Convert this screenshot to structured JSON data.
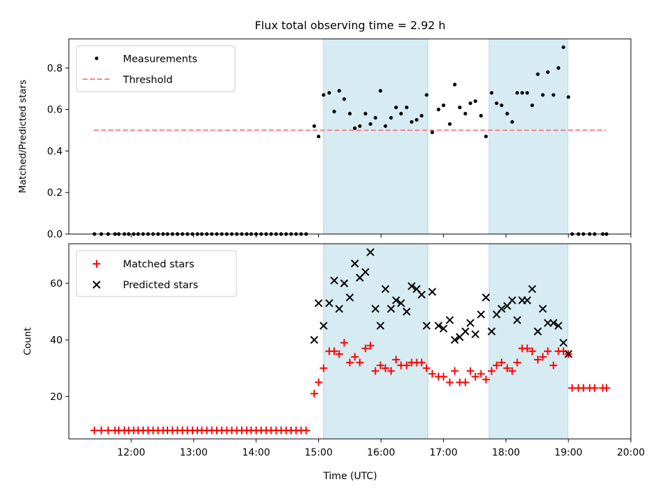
{
  "chart_data": {
    "type": "scatter",
    "title": "Flux total observing time = 2.92 h",
    "xlabel": "Time (UTC)",
    "x_unit": "hours UTC",
    "xlim": [
      11.0,
      20.0
    ],
    "x_ticks": [
      {
        "value": 12,
        "label": "12:00"
      },
      {
        "value": 13,
        "label": "13:00"
      },
      {
        "value": 14,
        "label": "14:00"
      },
      {
        "value": 15,
        "label": "15:00"
      },
      {
        "value": 16,
        "label": "16:00"
      },
      {
        "value": 17,
        "label": "17:00"
      },
      {
        "value": 18,
        "label": "18:00"
      },
      {
        "value": 19,
        "label": "19:00"
      },
      {
        "value": 20,
        "label": "20:00"
      }
    ],
    "shaded_intervals": [
      [
        15.08,
        16.75
      ],
      [
        17.73,
        18.99
      ]
    ],
    "top_panel": {
      "ylabel": "Matched/Predicted stars",
      "ylim": [
        0.0,
        0.94
      ],
      "y_ticks": [
        {
          "value": 0.0,
          "label": "0.0"
        },
        {
          "value": 0.2,
          "label": "0.2"
        },
        {
          "value": 0.4,
          "label": "0.4"
        },
        {
          "value": 0.6,
          "label": "0.6"
        },
        {
          "value": 0.8,
          "label": "0.8"
        }
      ],
      "legend": [
        "Measurements",
        "Threshold"
      ],
      "threshold": {
        "name": "Threshold",
        "value": 0.5,
        "x_range": [
          11.4,
          19.6
        ],
        "color": "#ff6f6f"
      },
      "measurements": {
        "name": "Measurements",
        "color": "#000000",
        "x": [
          11.41,
          11.52,
          11.63,
          11.74,
          11.8,
          11.89,
          11.96,
          12.04,
          12.11,
          12.19,
          12.27,
          12.35,
          12.43,
          12.51,
          12.58,
          12.66,
          12.74,
          12.82,
          12.9,
          12.98,
          13.06,
          13.13,
          13.21,
          13.29,
          13.37,
          13.45,
          13.53,
          13.61,
          13.69,
          13.77,
          13.85,
          13.92,
          14.0,
          14.08,
          14.16,
          14.24,
          14.32,
          14.4,
          14.48,
          14.56,
          14.64,
          14.72,
          14.8,
          14.93,
          15.0,
          15.08,
          15.17,
          15.25,
          15.33,
          15.41,
          15.5,
          15.58,
          15.66,
          15.75,
          15.83,
          15.91,
          15.99,
          16.07,
          16.16,
          16.24,
          16.32,
          16.41,
          16.49,
          16.57,
          16.65,
          16.73,
          16.82,
          16.92,
          17.0,
          17.1,
          17.18,
          17.26,
          17.35,
          17.43,
          17.51,
          17.6,
          17.68,
          17.77,
          17.85,
          17.93,
          18.02,
          18.1,
          18.18,
          18.26,
          18.34,
          18.42,
          18.51,
          18.59,
          18.67,
          18.76,
          18.84,
          18.92,
          19.0,
          19.06,
          19.16,
          19.24,
          19.34,
          19.42,
          19.55,
          19.61
        ],
        "y": [
          0.0,
          0.0,
          0.0,
          0.0,
          0.0,
          0.0,
          0.0,
          0.0,
          0.0,
          0.0,
          0.0,
          0.0,
          0.0,
          0.0,
          0.0,
          0.0,
          0.0,
          0.0,
          0.0,
          0.0,
          0.0,
          0.0,
          0.0,
          0.0,
          0.0,
          0.0,
          0.0,
          0.0,
          0.0,
          0.0,
          0.0,
          0.0,
          0.0,
          0.0,
          0.0,
          0.0,
          0.0,
          0.0,
          0.0,
          0.0,
          0.0,
          0.0,
          0.0,
          0.52,
          0.47,
          0.67,
          0.68,
          0.59,
          0.69,
          0.65,
          0.58,
          0.51,
          0.52,
          0.58,
          0.53,
          0.56,
          0.69,
          0.52,
          0.56,
          0.61,
          0.58,
          0.61,
          0.54,
          0.55,
          0.57,
          0.67,
          0.49,
          0.6,
          0.62,
          0.53,
          0.72,
          0.61,
          0.58,
          0.63,
          0.64,
          0.57,
          0.47,
          0.68,
          0.63,
          0.62,
          0.58,
          0.54,
          0.68,
          0.68,
          0.68,
          0.62,
          0.77,
          0.67,
          0.78,
          0.67,
          0.8,
          0.9,
          0.66,
          0.0,
          0.0,
          0.0,
          0.0,
          0.0,
          0.0,
          0.0
        ]
      }
    },
    "bottom_panel": {
      "ylabel": "Count",
      "ylim": [
        5,
        74
      ],
      "y_ticks": [
        {
          "value": 20,
          "label": "20"
        },
        {
          "value": 40,
          "label": "40"
        },
        {
          "value": 60,
          "label": "60"
        }
      ],
      "legend": [
        "Matched stars",
        "Predicted stars"
      ],
      "series": [
        {
          "name": "Matched stars",
          "marker": "plus",
          "color": "#ff0000",
          "x": [
            11.41,
            11.52,
            11.63,
            11.74,
            11.8,
            11.89,
            11.96,
            12.04,
            12.11,
            12.19,
            12.27,
            12.35,
            12.43,
            12.51,
            12.58,
            12.66,
            12.74,
            12.82,
            12.9,
            12.98,
            13.06,
            13.13,
            13.21,
            13.29,
            13.37,
            13.45,
            13.53,
            13.61,
            13.69,
            13.77,
            13.85,
            13.92,
            14.0,
            14.08,
            14.16,
            14.24,
            14.32,
            14.4,
            14.48,
            14.56,
            14.64,
            14.72,
            14.8,
            14.93,
            15.0,
            15.08,
            15.17,
            15.25,
            15.33,
            15.41,
            15.5,
            15.58,
            15.66,
            15.75,
            15.83,
            15.91,
            15.99,
            16.07,
            16.16,
            16.24,
            16.32,
            16.41,
            16.49,
            16.57,
            16.65,
            16.73,
            16.82,
            16.92,
            17.0,
            17.1,
            17.18,
            17.26,
            17.35,
            17.43,
            17.51,
            17.6,
            17.68,
            17.77,
            17.85,
            17.93,
            18.02,
            18.1,
            18.18,
            18.26,
            18.34,
            18.42,
            18.51,
            18.59,
            18.67,
            18.76,
            18.84,
            18.92,
            19.0,
            19.06,
            19.16,
            19.24,
            19.34,
            19.42,
            19.55,
            19.61
          ],
          "y": [
            8,
            8,
            8,
            8,
            8,
            8,
            8,
            8,
            8,
            8,
            8,
            8,
            8,
            8,
            8,
            8,
            8,
            8,
            8,
            8,
            8,
            8,
            8,
            8,
            8,
            8,
            8,
            8,
            8,
            8,
            8,
            8,
            8,
            8,
            8,
            8,
            8,
            8,
            8,
            8,
            8,
            8,
            8,
            21,
            25,
            30,
            36,
            36,
            35,
            39,
            32,
            34,
            32,
            37,
            38,
            29,
            31,
            30,
            29,
            33,
            31,
            31,
            32,
            32,
            32,
            30,
            28,
            27,
            27,
            25,
            29,
            25,
            25,
            29,
            27,
            28,
            26,
            29,
            31,
            32,
            30,
            29,
            32,
            37,
            37,
            36,
            33,
            34,
            36,
            31,
            36,
            36,
            35,
            23,
            23,
            23,
            23,
            23,
            23,
            23
          ]
        },
        {
          "name": "Predicted stars",
          "marker": "cross",
          "color": "#000000",
          "x": [
            14.93,
            15.0,
            15.08,
            15.17,
            15.25,
            15.33,
            15.41,
            15.5,
            15.58,
            15.66,
            15.75,
            15.83,
            15.91,
            15.99,
            16.07,
            16.16,
            16.24,
            16.32,
            16.41,
            16.49,
            16.57,
            16.65,
            16.73,
            16.82,
            16.92,
            17.0,
            17.1,
            17.18,
            17.26,
            17.35,
            17.43,
            17.51,
            17.6,
            17.68,
            17.77,
            17.85,
            17.93,
            18.02,
            18.1,
            18.18,
            18.26,
            18.34,
            18.42,
            18.51,
            18.59,
            18.67,
            18.76,
            18.84,
            18.92,
            19.0
          ],
          "y": [
            40,
            53,
            45,
            53,
            61,
            51,
            60,
            55,
            67,
            62,
            64,
            71,
            51,
            45,
            58,
            51,
            54,
            53,
            50,
            59,
            58,
            56,
            45,
            57,
            45,
            44,
            47,
            40,
            41,
            43,
            46,
            42,
            49,
            55,
            43,
            49,
            51,
            52,
            54,
            47,
            54,
            54,
            58,
            43,
            51,
            46,
            46,
            45,
            39,
            35
          ]
        }
      ]
    }
  }
}
